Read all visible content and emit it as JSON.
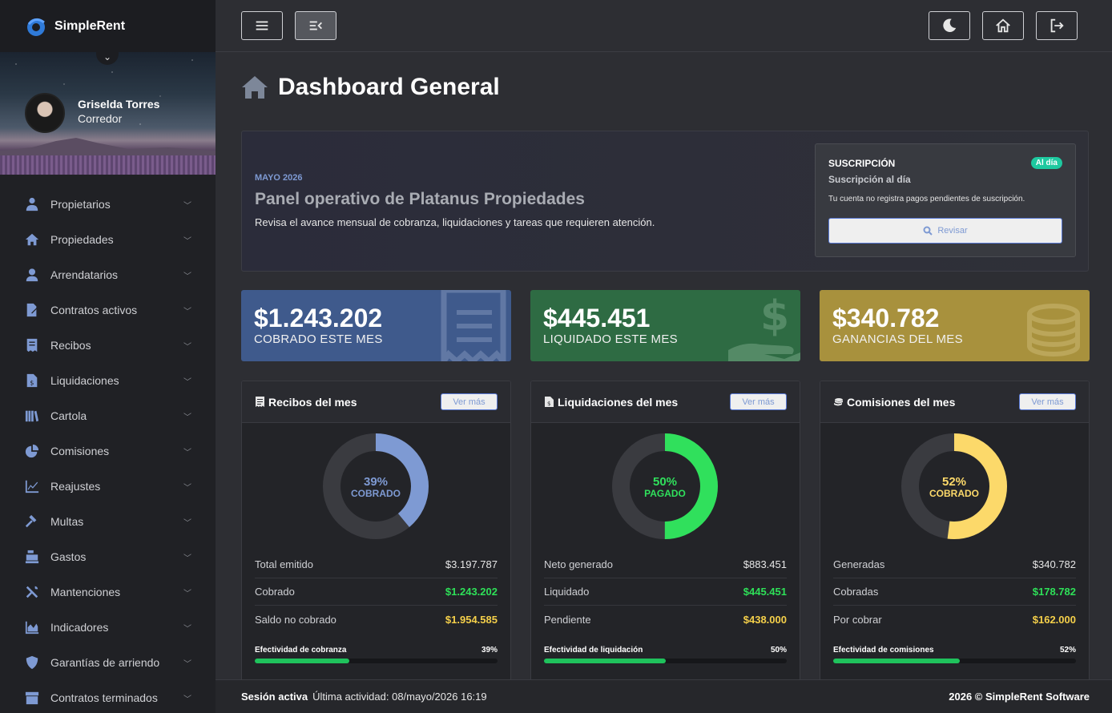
{
  "brand": {
    "name": "SimpleRent"
  },
  "user": {
    "name": "Griselda Torres",
    "role": "Corredor"
  },
  "menu": [
    {
      "label": "Propietarios",
      "icon": "user-tie-icon"
    },
    {
      "label": "Propiedades",
      "icon": "home-icon"
    },
    {
      "label": "Arrendatarios",
      "icon": "user-icon"
    },
    {
      "label": "Contratos activos",
      "icon": "file-signature-icon"
    },
    {
      "label": "Recibos",
      "icon": "receipt-icon"
    },
    {
      "label": "Liquidaciones",
      "icon": "file-invoice-dollar-icon"
    },
    {
      "label": "Cartola",
      "icon": "book-icon"
    },
    {
      "label": "Comisiones",
      "icon": "pie-chart-icon"
    },
    {
      "label": "Reajustes",
      "icon": "line-chart-icon"
    },
    {
      "label": "Multas",
      "icon": "gavel-icon"
    },
    {
      "label": "Gastos",
      "icon": "cash-register-icon"
    },
    {
      "label": "Mantenciones",
      "icon": "tools-icon"
    },
    {
      "label": "Indicadores",
      "icon": "area-chart-icon"
    },
    {
      "label": "Garantías de arriendo",
      "icon": "shield-icon"
    },
    {
      "label": "Contratos terminados",
      "icon": "archive-icon"
    }
  ],
  "page": {
    "title": "Dashboard General"
  },
  "banner": {
    "month": "MAYO 2026",
    "title": "Panel operativo de Platanus Propiedades",
    "description": "Revisa el avance mensual de cobranza, liquidaciones y tareas que requieren atención."
  },
  "subscription": {
    "heading": "SUSCRIPCIÓN",
    "badge": "Al día",
    "status": "Suscripción al día",
    "detail": "Tu cuenta no registra pagos pendientes de suscripción.",
    "button": "Revisar"
  },
  "stats": [
    {
      "value": "$1.243.202",
      "label": "COBRADO ESTE MES",
      "color": "#3f5a8c"
    },
    {
      "value": "$445.451",
      "label": "LIQUIDADO ESTE MES",
      "color": "#2e6b43"
    },
    {
      "value": "$340.782",
      "label": "GANANCIAS DEL MES",
      "color": "#a8913d"
    }
  ],
  "cards": [
    {
      "title": "Recibos del mes",
      "more": "Ver más",
      "percent": 39,
      "percent_text": "39%",
      "donut_label": "COBRADO",
      "color": "#7e9ad3",
      "rows": [
        {
          "label": "Total emitido",
          "value": "$3.197.787"
        },
        {
          "label": "Cobrado",
          "value": "$1.243.202"
        },
        {
          "label": "Saldo no cobrado",
          "value": "$1.954.585"
        }
      ],
      "effectiveness_label": "Efectividad de cobranza",
      "effectiveness_text": "39%",
      "effectiveness": 39
    },
    {
      "title": "Liquidaciones del mes",
      "more": "Ver más",
      "percent": 50,
      "percent_text": "50%",
      "donut_label": "PAGADO",
      "color": "#30e05c",
      "rows": [
        {
          "label": "Neto generado",
          "value": "$883.451"
        },
        {
          "label": "Liquidado",
          "value": "$445.451"
        },
        {
          "label": "Pendiente",
          "value": "$438.000"
        }
      ],
      "effectiveness_label": "Efectividad de liquidación",
      "effectiveness_text": "50%",
      "effectiveness": 50
    },
    {
      "title": "Comisiones del mes",
      "more": "Ver más",
      "percent": 52,
      "percent_text": "52%",
      "donut_label": "COBRADO",
      "color": "#fcd96a",
      "rows": [
        {
          "label": "Generadas",
          "value": "$340.782"
        },
        {
          "label": "Cobradas",
          "value": "$178.782"
        },
        {
          "label": "Por cobrar",
          "value": "$162.000"
        }
      ],
      "effectiveness_label": "Efectividad de comisiones",
      "effectiveness_text": "52%",
      "effectiveness": 52
    }
  ],
  "footer": {
    "session": "Sesión activa",
    "activity": "Última actividad: 08/mayo/2026 16:19",
    "copyright": "2026 © SimpleRent Software"
  }
}
